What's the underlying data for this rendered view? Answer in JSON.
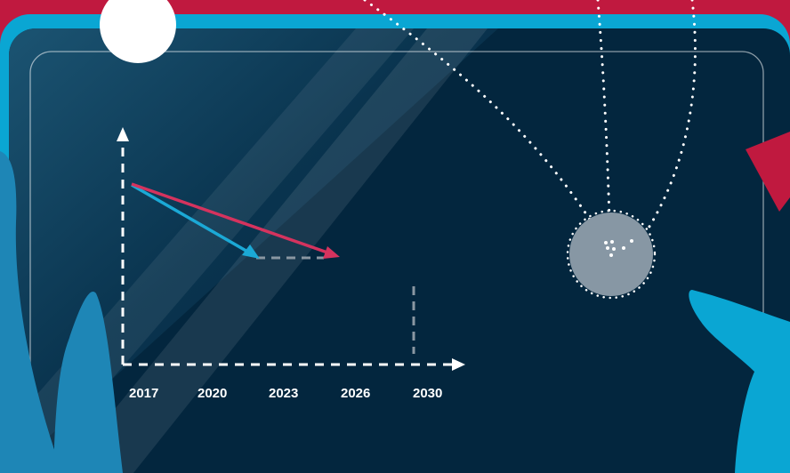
{
  "colors": {
    "background_red": "#C0193F",
    "frame_cyan": "#0AA6D3",
    "panel_navy": "#03263E",
    "arrow_red": "#D5335E",
    "arrow_blue": "#1BA9D6",
    "hand_blue": "#1E86B6",
    "globe_gray": "#8797A4"
  },
  "chart": {
    "x_ticks": [
      "2017",
      "2020",
      "2023",
      "2026",
      "2030"
    ]
  },
  "icons": {
    "hanging_globe": "globe-icon",
    "sun": "circle-icon"
  }
}
